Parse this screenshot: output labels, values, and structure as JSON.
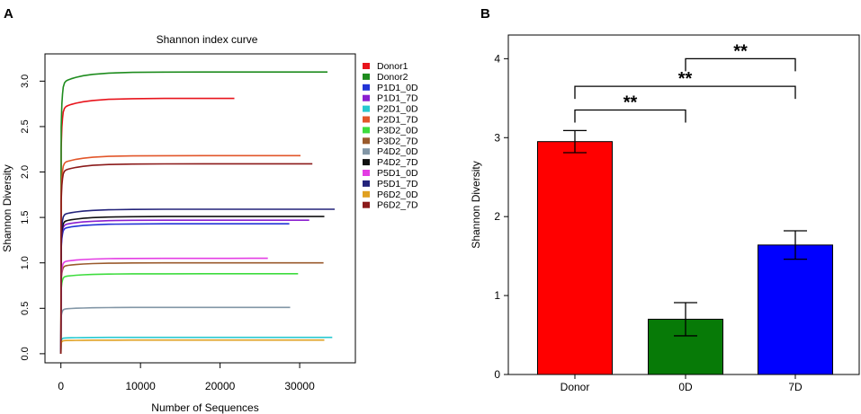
{
  "panels": {
    "a_label": "A",
    "b_label": "B"
  },
  "chart_data": [
    {
      "type": "line",
      "title": "Shannon index curve",
      "xlabel": "Number of Sequences",
      "ylabel": "Shannon Diversity",
      "xlim": [
        -2000,
        37000
      ],
      "ylim": [
        -0.1,
        3.3
      ],
      "xticks": [
        0,
        10000,
        20000,
        30000
      ],
      "xtick_labels": [
        "0",
        "10000",
        "20000",
        "30000"
      ],
      "yticks": [
        0.0,
        0.5,
        1.0,
        1.5,
        2.0,
        2.5,
        3.0
      ],
      "ytick_labels": [
        "0.0",
        "0.5",
        "1.0",
        "1.5",
        "2.0",
        "2.5",
        "3.0"
      ],
      "legend_position": "right",
      "series": [
        {
          "name": "Donor1",
          "color": "#e8141c",
          "plateau": 2.81,
          "max_x": 21800
        },
        {
          "name": "Donor2",
          "color": "#1e8c1e",
          "plateau": 3.1,
          "max_x": 33500
        },
        {
          "name": "P1D1_0D",
          "color": "#2233d6",
          "plateau": 1.43,
          "max_x": 28700
        },
        {
          "name": "P1D1_7D",
          "color": "#8a1fd0",
          "plateau": 1.47,
          "max_x": 31200
        },
        {
          "name": "P2D1_0D",
          "color": "#27c9cf",
          "plateau": 0.18,
          "max_x": 34100
        },
        {
          "name": "P2D1_7D",
          "color": "#e2562a",
          "plateau": 2.18,
          "max_x": 30100
        },
        {
          "name": "P3D2_0D",
          "color": "#3ddc3d",
          "plateau": 0.88,
          "max_x": 29800
        },
        {
          "name": "P3D2_7D",
          "color": "#9a5a2c",
          "plateau": 1.0,
          "max_x": 33000
        },
        {
          "name": "P4D2_0D",
          "color": "#8296a6",
          "plateau": 0.51,
          "max_x": 28800
        },
        {
          "name": "P4D2_7D",
          "color": "#111111",
          "plateau": 1.51,
          "max_x": 33100
        },
        {
          "name": "P5D1_0D",
          "color": "#e43de4",
          "plateau": 1.05,
          "max_x": 26000
        },
        {
          "name": "P5D1_7D",
          "color": "#23237a",
          "plateau": 1.59,
          "max_x": 34400
        },
        {
          "name": "P6D2_0D",
          "color": "#e0a020",
          "plateau": 0.15,
          "max_x": 33100
        },
        {
          "name": "P6D2_7D",
          "color": "#8b1a1a",
          "plateau": 2.09,
          "max_x": 31600
        }
      ]
    },
    {
      "type": "bar",
      "ylabel": "Shannon Diversity",
      "ylim": [
        0,
        4.3
      ],
      "yticks": [
        0,
        1,
        2,
        3,
        4
      ],
      "ytick_labels": [
        "0",
        "1",
        "2",
        "3",
        "4"
      ],
      "categories": [
        "Donor",
        "0D",
        "7D"
      ],
      "values": [
        2.95,
        0.7,
        1.64
      ],
      "error_low": [
        2.81,
        0.49,
        1.46
      ],
      "error_high": [
        3.09,
        0.91,
        1.82
      ],
      "colors": [
        "#ff0000",
        "#077a07",
        "#0000ff"
      ],
      "significance": [
        {
          "from": 1,
          "to": 2,
          "label": "**",
          "level": 4.0
        },
        {
          "from": 0,
          "to": 2,
          "label": "**",
          "level": 3.65
        },
        {
          "from": 0,
          "to": 1,
          "label": "**",
          "level": 3.35
        }
      ]
    }
  ]
}
